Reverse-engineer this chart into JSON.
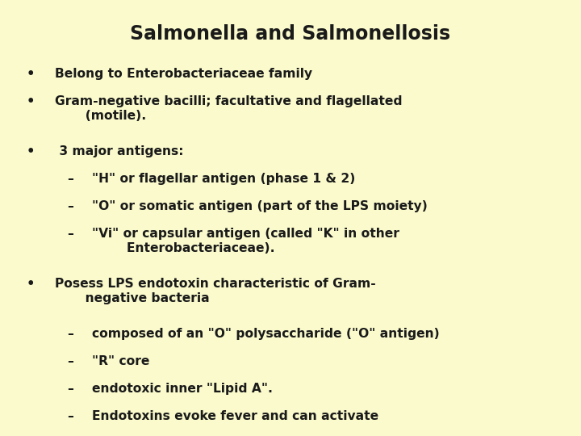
{
  "title": "Salmonella and Salmonellosis",
  "background_color": "#FAFACC",
  "title_fontsize": 17,
  "title_color": "#1a1a1a",
  "text_color": "#1a1a1a",
  "body_fontsize": 11.2,
  "lines": [
    {
      "type": "bullet",
      "indent": 0,
      "text": "Belong to Enterobacteriaceae family",
      "extra_lines": 0
    },
    {
      "type": "bullet",
      "indent": 0,
      "text": "Gram-negative bacilli; facultative and flagellated\n       (motile).",
      "extra_lines": 1
    },
    {
      "type": "bullet",
      "indent": 0,
      "text": " 3 major antigens:",
      "extra_lines": 0
    },
    {
      "type": "dash",
      "indent": 1,
      "text": "\"H\" or flagellar antigen (phase 1 & 2)",
      "extra_lines": 0
    },
    {
      "type": "dash",
      "indent": 1,
      "text": "\"O\" or somatic antigen (part of the LPS moiety)",
      "extra_lines": 0
    },
    {
      "type": "dash",
      "indent": 1,
      "text": "\"Vi\" or capsular antigen (called \"K\" in other\n        Enterobacteriaceae).",
      "extra_lines": 1
    },
    {
      "type": "bullet",
      "indent": 0,
      "text": "Posess LPS endotoxin characteristic of Gram-\n       negative bacteria",
      "extra_lines": 1
    },
    {
      "type": "dash",
      "indent": 1,
      "text": "composed of an \"O\" polysaccharide (\"O\" antigen)",
      "extra_lines": 0
    },
    {
      "type": "dash",
      "indent": 1,
      "text": "\"R\" core",
      "extra_lines": 0
    },
    {
      "type": "dash",
      "indent": 1,
      "text": "endotoxic inner \"Lipid A\".",
      "extra_lines": 0
    },
    {
      "type": "dash",
      "indent": 1,
      "text": "Endotoxins evoke fever and can activate",
      "extra_lines": 0
    }
  ]
}
